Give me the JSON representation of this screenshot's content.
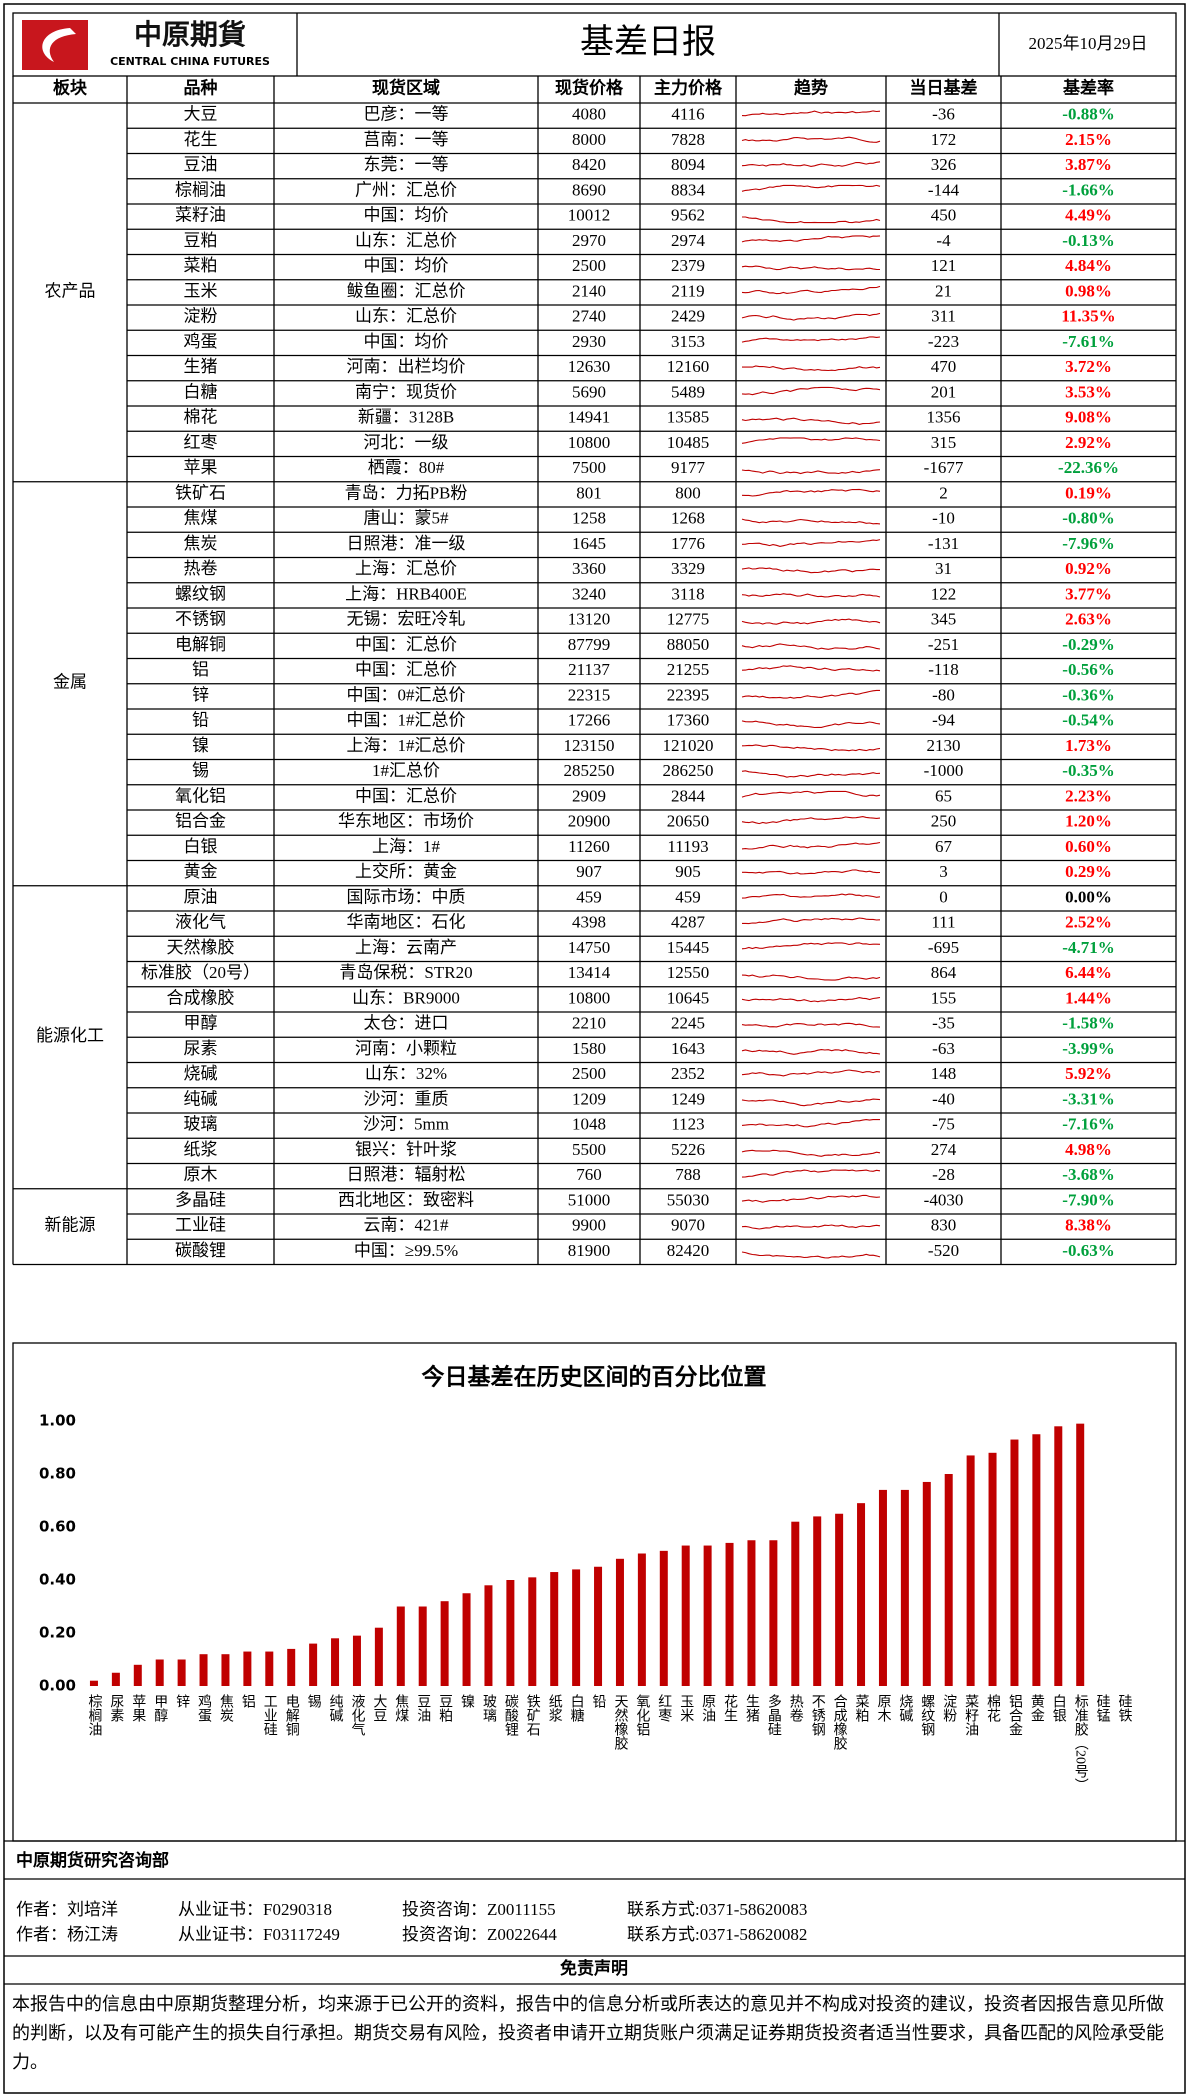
{
  "header": {
    "logo_cn": "中原期貨",
    "logo_en": "CENTRAL CHINA FUTURES",
    "title": "基差日报",
    "date": "2025年10月29日"
  },
  "table": {
    "columns": [
      "板块",
      "品种",
      "现货区域",
      "现货价格",
      "主力价格",
      "趋势",
      "当日基差",
      "基差率"
    ],
    "groups": [
      {
        "sector": "农产品",
        "rows": [
          [
            "大豆",
            "巴彦：一等",
            4080,
            4116,
            -36,
            "-0.88%"
          ],
          [
            "花生",
            "莒南：一等",
            8000,
            7828,
            172,
            "2.15%"
          ],
          [
            "豆油",
            "东莞：一等",
            8420,
            8094,
            326,
            "3.87%"
          ],
          [
            "棕榈油",
            "广州：汇总价",
            8690,
            8834,
            -144,
            "-1.66%"
          ],
          [
            "菜籽油",
            "中国：均价",
            10012,
            9562,
            450,
            "4.49%"
          ],
          [
            "豆粕",
            "山东：汇总价",
            2970,
            2974,
            -4,
            "-0.13%"
          ],
          [
            "菜粕",
            "中国：均价",
            2500,
            2379,
            121,
            "4.84%"
          ],
          [
            "玉米",
            "鲅鱼圈：汇总价",
            2140,
            2119,
            21,
            "0.98%"
          ],
          [
            "淀粉",
            "山东：汇总价",
            2740,
            2429,
            311,
            "11.35%"
          ],
          [
            "鸡蛋",
            "中国：均价",
            2930,
            3153,
            -223,
            "-7.61%"
          ],
          [
            "生猪",
            "河南：出栏均价",
            12630,
            12160,
            470,
            "3.72%"
          ],
          [
            "白糖",
            "南宁：现货价",
            5690,
            5489,
            201,
            "3.53%"
          ],
          [
            "棉花",
            "新疆：3128B",
            14941,
            13585,
            1356,
            "9.08%"
          ],
          [
            "红枣",
            "河北：一级",
            10800,
            10485,
            315,
            "2.92%"
          ],
          [
            "苹果",
            "栖霞：80#",
            7500,
            9177,
            -1677,
            "-22.36%"
          ]
        ]
      },
      {
        "sector": "金属",
        "rows": [
          [
            "铁矿石",
            "青岛：力拓PB粉",
            801,
            800,
            2,
            "0.19%"
          ],
          [
            "焦煤",
            "唐山：蒙5#",
            1258,
            1268,
            -10,
            "-0.80%"
          ],
          [
            "焦炭",
            "日照港：准一级",
            1645,
            1776,
            -131,
            "-7.96%"
          ],
          [
            "热卷",
            "上海：汇总价",
            3360,
            3329,
            31,
            "0.92%"
          ],
          [
            "螺纹钢",
            "上海：HRB400E",
            3240,
            3118,
            122,
            "3.77%"
          ],
          [
            "不锈钢",
            "无锡：宏旺冷轧",
            13120,
            12775,
            345,
            "2.63%"
          ],
          [
            "电解铜",
            "中国：汇总价",
            87799,
            88050,
            -251,
            "-0.29%"
          ],
          [
            "铝",
            "中国：汇总价",
            21137,
            21255,
            -118,
            "-0.56%"
          ],
          [
            "锌",
            "中国：0#汇总价",
            22315,
            22395,
            -80,
            "-0.36%"
          ],
          [
            "铅",
            "中国：1#汇总价",
            17266,
            17360,
            -94,
            "-0.54%"
          ],
          [
            "镍",
            "上海：1#汇总价",
            123150,
            121020,
            2130,
            "1.73%"
          ],
          [
            "锡",
            "1#汇总价",
            285250,
            286250,
            -1000,
            "-0.35%"
          ],
          [
            "氧化铝",
            "中国：汇总价",
            2909,
            2844,
            65,
            "2.23%"
          ],
          [
            "铝合金",
            "华东地区：市场价",
            20900,
            20650,
            250,
            "1.20%"
          ],
          [
            "白银",
            "上海：1#",
            11260,
            11193,
            67,
            "0.60%"
          ],
          [
            "黄金",
            "上交所：黄金",
            907,
            905,
            3,
            "0.29%"
          ]
        ]
      },
      {
        "sector": "能源化工",
        "rows": [
          [
            "原油",
            "国际市场：中质",
            459,
            459,
            0,
            "0.00%"
          ],
          [
            "液化气",
            "华南地区：石化",
            4398,
            4287,
            111,
            "2.52%"
          ],
          [
            "天然橡胶",
            "上海：云南产",
            14750,
            15445,
            -695,
            "-4.71%"
          ],
          [
            "标准胶（20号）",
            "青岛保税：STR20",
            13414,
            12550,
            864,
            "6.44%"
          ],
          [
            "合成橡胶",
            "山东：BR9000",
            10800,
            10645,
            155,
            "1.44%"
          ],
          [
            "甲醇",
            "太仓：进口",
            2210,
            2245,
            -35,
            "-1.58%"
          ],
          [
            "尿素",
            "河南：小颗粒",
            1580,
            1643,
            -63,
            "-3.99%"
          ],
          [
            "烧碱",
            "山东：32%",
            2500,
            2352,
            148,
            "5.92%"
          ],
          [
            "纯碱",
            "沙河：重质",
            1209,
            1249,
            -40,
            "-3.31%"
          ],
          [
            "玻璃",
            "沙河：5mm",
            1048,
            1123,
            -75,
            "-7.16%"
          ],
          [
            "纸浆",
            "银兴：针叶浆",
            5500,
            5226,
            274,
            "4.98%"
          ],
          [
            "原木",
            "日照港：辐射松",
            760,
            788,
            -28,
            "-3.68%"
          ]
        ]
      },
      {
        "sector": "新能源",
        "rows": [
          [
            "多晶硅",
            "西北地区：致密料",
            51000,
            55030,
            -4030,
            "-7.90%"
          ],
          [
            "工业硅",
            "云南：421#",
            9900,
            9070,
            830,
            "8.38%"
          ],
          [
            "碳酸锂",
            "中国：≥99.5%",
            81900,
            82420,
            -520,
            "-0.63%"
          ]
        ]
      }
    ]
  },
  "chart_data": {
    "type": "bar",
    "title": "今日基差在历史区间的百分比位置",
    "color": "#c00000",
    "categories": [
      "棕榈油",
      "尿素",
      "苹果",
      "甲醇",
      "锌",
      "鸡蛋",
      "焦炭",
      "铝",
      "工业硅",
      "电解铜",
      "锡",
      "纯碱",
      "液化气",
      "大豆",
      "焦煤",
      "豆油",
      "豆粕",
      "镍",
      "玻璃",
      "碳酸锂",
      "铁矿石",
      "纸浆",
      "白糖",
      "铅",
      "天然橡胶",
      "氧化铝",
      "红枣",
      "玉米",
      "原油",
      "花生",
      "生猪",
      "多晶硅",
      "热卷",
      "不锈钢",
      "合成橡胶",
      "菜粕",
      "原木",
      "烧碱",
      "螺纹钢",
      "淀粉",
      "菜籽油",
      "棉花",
      "铝合金",
      "黄金",
      "白银",
      "标准胶（20号）",
      "硅锰",
      "硅铁"
    ],
    "values": [
      0.02,
      0.05,
      0.08,
      0.1,
      0.1,
      0.12,
      0.12,
      0.13,
      0.13,
      0.14,
      0.16,
      0.18,
      0.19,
      0.22,
      0.3,
      0.3,
      0.32,
      0.35,
      0.38,
      0.4,
      0.41,
      0.43,
      0.44,
      0.45,
      0.48,
      0.5,
      0.51,
      0.53,
      0.53,
      0.54,
      0.55,
      0.55,
      0.62,
      0.64,
      0.65,
      0.69,
      0.74,
      0.74,
      0.77,
      0.8,
      0.87,
      0.88,
      0.93,
      0.95,
      0.98,
      0.99,
      null,
      null
    ],
    "ylim": [
      0,
      1
    ],
    "yticks": [
      {
        "value": 0,
        "label": "0.00"
      },
      {
        "value": 0.2,
        "label": "0.20"
      },
      {
        "value": 0.4,
        "label": "0.40"
      },
      {
        "value": 0.6,
        "label": "0.60"
      },
      {
        "value": 0.8,
        "label": "0.80"
      },
      {
        "value": 1,
        "label": "1.00"
      }
    ],
    "grid": false
  },
  "footer": {
    "department": "中原期货研究咨询部",
    "authors": [
      [
        "作者：刘培洋",
        "从业证书：F0290318",
        "投资咨询：Z0011155",
        "联系方式:0371-58620083"
      ],
      [
        "作者：杨江涛",
        "从业证书：F03117249",
        "投资咨询：Z0022644",
        "联系方式:0371-58620082"
      ]
    ],
    "disclaimer_title": "免责声明",
    "disclaimer": "本报告中的信息由中原期货整理分析，均来源于已公开的资料，报告中的信息分析或所表达的意见并不构成对投资的建议，投资者因报告意见所做的判断，以及有可能产生的损失自行承担。期货交易有风险，投资者申请开立期货账户须满足证券期货投资者适当性要求，具备匹配的风险承受能力。"
  }
}
